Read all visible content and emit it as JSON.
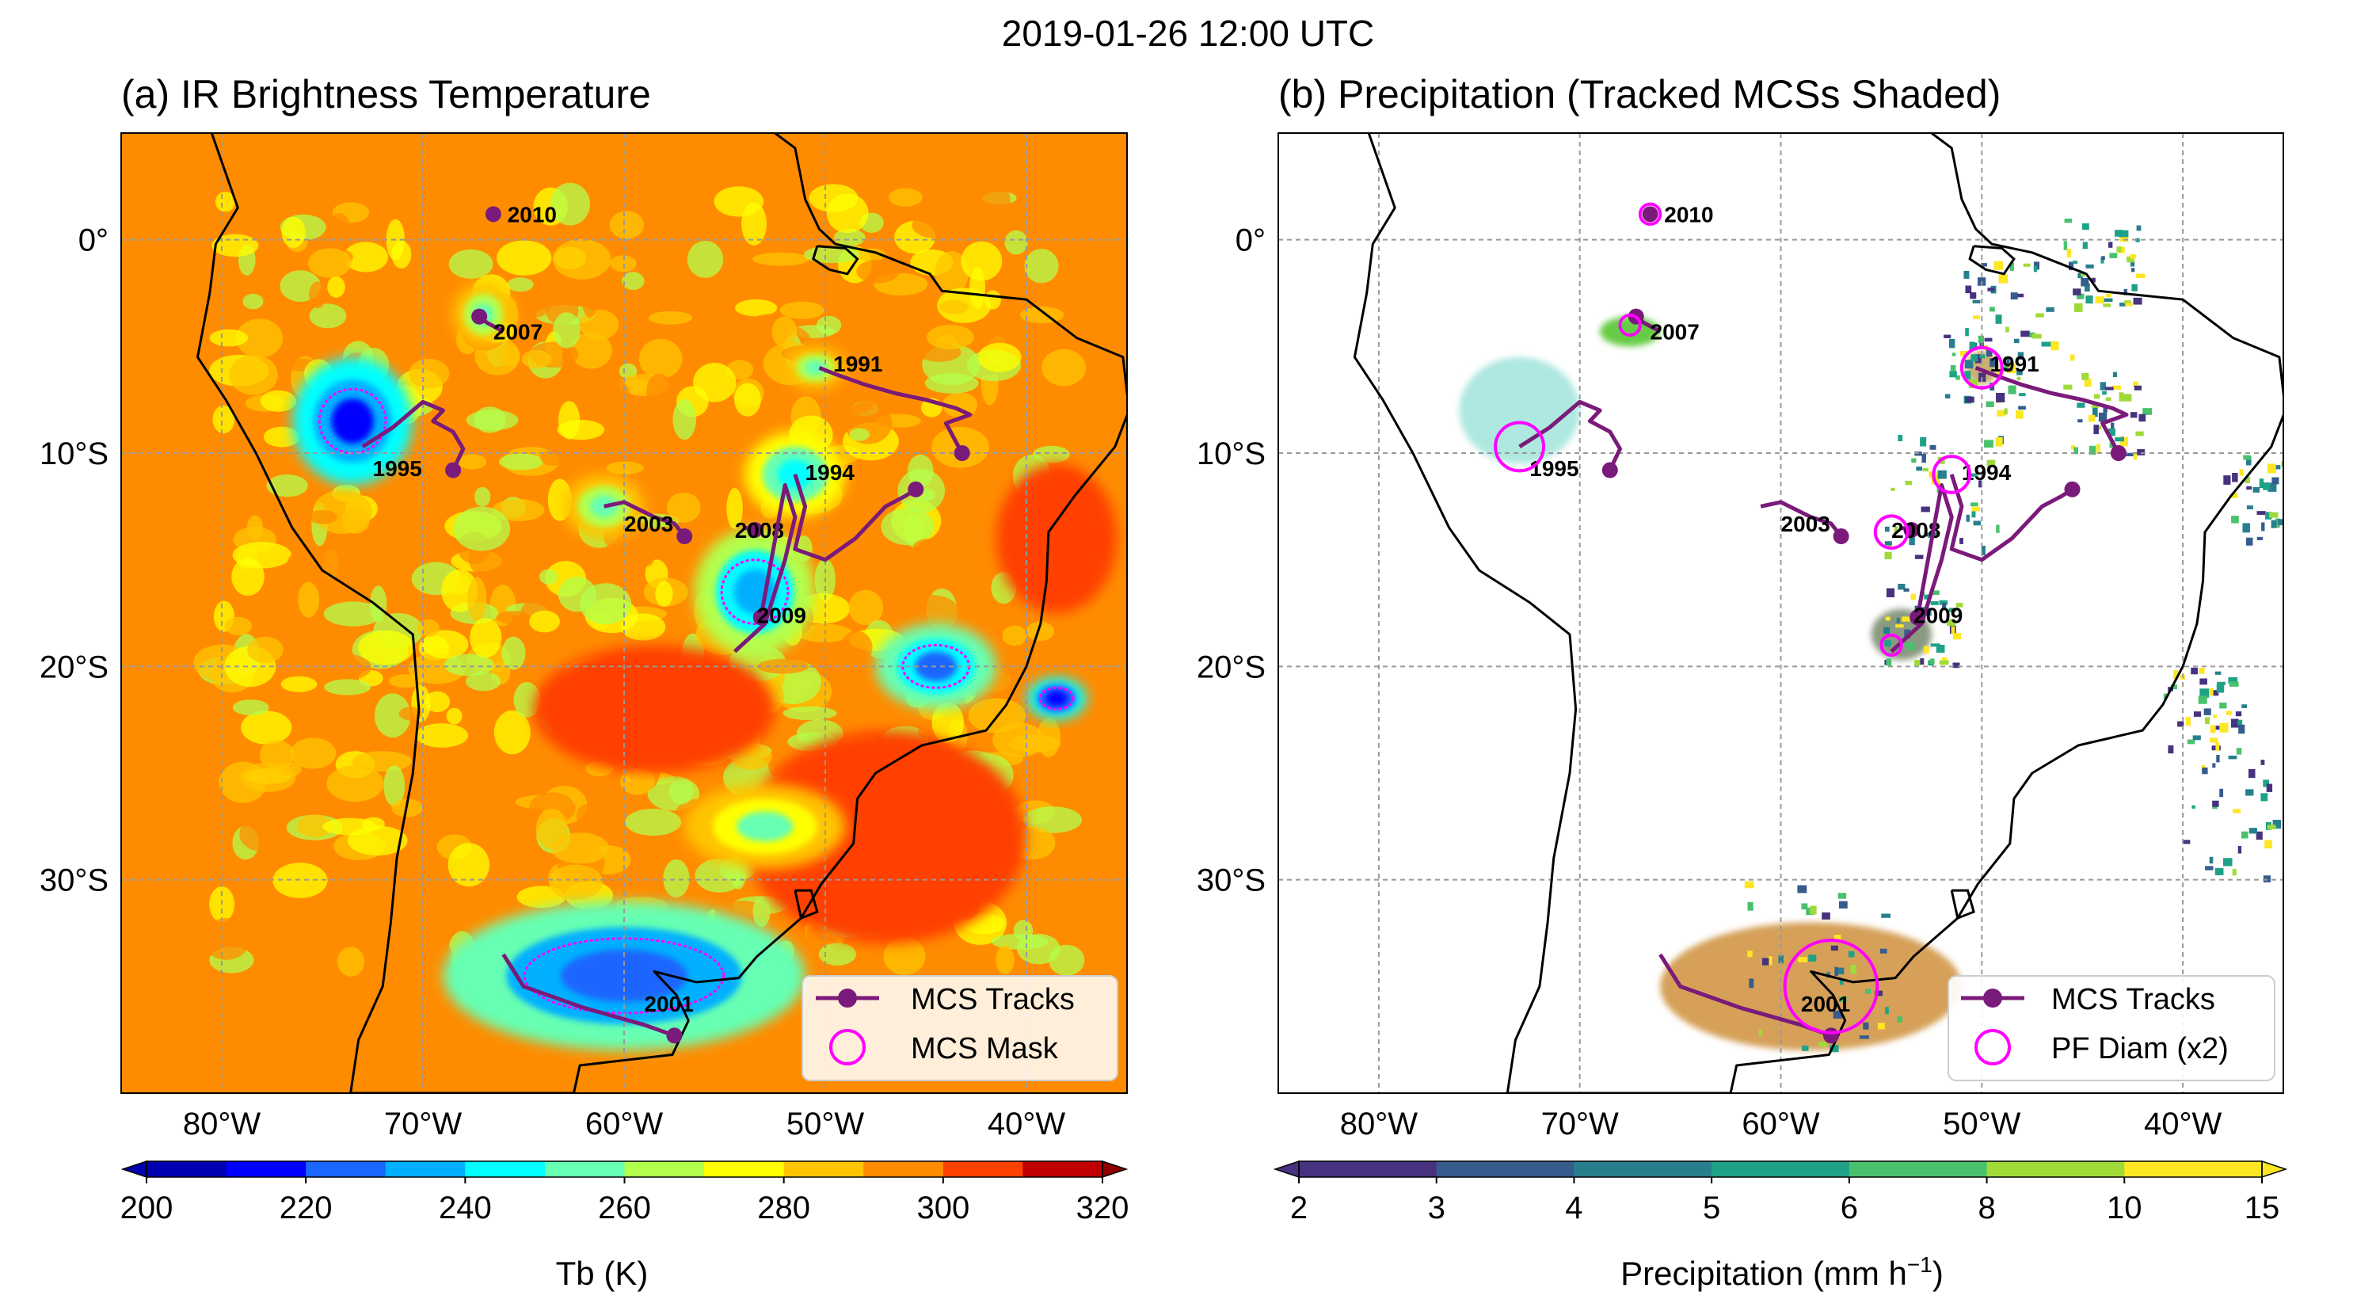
{
  "figure": {
    "title": "2019-01-26 12:00 UTC"
  },
  "chart_data": [
    {
      "type": "map",
      "id": "panel_a",
      "title": "(a) IR Brightness Temperature",
      "lon_range": [
        -85,
        -35
      ],
      "lat_range": [
        -40,
        5
      ],
      "xticks": [
        -80,
        -70,
        -60,
        -50,
        -40
      ],
      "xtick_labels": [
        "80°W",
        "70°W",
        "60°W",
        "50°W",
        "40°W"
      ],
      "yticks": [
        0,
        -10,
        -20,
        -30
      ],
      "ytick_labels": [
        "0°",
        "10°S",
        "20°S",
        "30°S"
      ],
      "grid": true,
      "background_field": "Tb (K)",
      "cold_cloud_regions": [
        {
          "lon": -73.5,
          "lat": -8.5,
          "rx": 3.0,
          "ry": 3.0,
          "tb": 215
        },
        {
          "lon": -67.0,
          "lat": -3.5,
          "rx": 1.5,
          "ry": 1.5,
          "tb": 250
        },
        {
          "lon": -61.0,
          "lat": -12.5,
          "rx": 2.0,
          "ry": 1.5,
          "tb": 250
        },
        {
          "lon": -53.5,
          "lat": -16.5,
          "rx": 3.0,
          "ry": 3.0,
          "tb": 230
        },
        {
          "lon": -50.5,
          "lat": -6.0,
          "rx": 1.5,
          "ry": 1.0,
          "tb": 250
        },
        {
          "lon": -51.5,
          "lat": -11.0,
          "rx": 2.5,
          "ry": 2.0,
          "tb": 240
        },
        {
          "lon": -44.5,
          "lat": -20.0,
          "rx": 3.0,
          "ry": 2.0,
          "tb": 225
        },
        {
          "lon": -38.5,
          "lat": -21.5,
          "rx": 1.5,
          "ry": 1.0,
          "tb": 210
        },
        {
          "lon": -60.0,
          "lat": -34.5,
          "rx": 9.0,
          "ry": 3.5,
          "tb": 220
        },
        {
          "lon": -53.0,
          "lat": -27.5,
          "rx": 4.0,
          "ry": 2.0,
          "tb": 255
        }
      ],
      "warm_regions": [
        {
          "lon": -58.5,
          "lat": -22.0,
          "rx": 6.0,
          "ry": 3.0,
          "tb": 305
        },
        {
          "lon": -47.0,
          "lat": -28.0,
          "rx": 7.0,
          "ry": 5.0,
          "tb": 305
        },
        {
          "lon": -38.5,
          "lat": -14.0,
          "rx": 3.0,
          "ry": 3.5,
          "tb": 305
        }
      ],
      "tracks": [
        {
          "id": "2010",
          "lons": [
            -66.5
          ],
          "lats": [
            1.2
          ],
          "label_lon": -65.8,
          "label_lat": 1.2
        },
        {
          "id": "2007",
          "lons": [
            -66.0,
            -66.8,
            -67.2
          ],
          "lats": [
            -4.3,
            -3.9,
            -3.6
          ],
          "label_lon": -66.5,
          "label_lat": -4.3
        },
        {
          "id": "1995",
          "lons": [
            -73.0,
            -71.5,
            -70.0,
            -69.0,
            -69.5,
            -68.5,
            -68.0,
            -68.5
          ],
          "lats": [
            -9.7,
            -8.8,
            -7.6,
            -8.0,
            -8.5,
            -9.0,
            -9.8,
            -10.8
          ],
          "label_lon": -72.5,
          "label_lat": -10.7
        },
        {
          "id": "1991",
          "lons": [
            -50.3,
            -49.5,
            -48.0,
            -46.5,
            -45.0,
            -43.5,
            -42.8,
            -44.0,
            -43.2
          ],
          "lats": [
            -6.0,
            -6.3,
            -6.8,
            -7.2,
            -7.5,
            -7.9,
            -8.2,
            -8.6,
            -10.0
          ],
          "label_lon": -49.6,
          "label_lat": -5.8
        },
        {
          "id": "2003",
          "lons": [
            -61.0,
            -60.0,
            -58.5,
            -57.5,
            -57.0
          ],
          "lats": [
            -12.5,
            -12.3,
            -13.0,
            -13.3,
            -13.9
          ],
          "label_lon": -60.0,
          "label_lat": -13.3
        },
        {
          "id": "1994",
          "lons": [
            -51.5,
            -51.0,
            -51.5,
            -50.0,
            -48.5,
            -47.0,
            -46.0,
            -45.5
          ],
          "lats": [
            -11.0,
            -12.5,
            -14.5,
            -15.0,
            -14.0,
            -12.5,
            -12.0,
            -11.7
          ],
          "label_lon": -51.0,
          "label_lat": -10.9
        },
        {
          "id": "2008",
          "lons": [
            -54.0,
            -53.5
          ],
          "lats": [
            -13.5,
            -13.6
          ],
          "label_lon": -54.5,
          "label_lat": -13.6
        },
        {
          "id": "2009",
          "lons": [
            -54.5,
            -53.0,
            -52.5,
            -52.0,
            -51.5,
            -52.0,
            -53.2
          ],
          "lats": [
            -19.3,
            -18.0,
            -16.5,
            -15.0,
            -13.0,
            -11.5,
            -17.7
          ],
          "label_lon": -53.4,
          "label_lat": -17.6
        },
        {
          "id": "2001",
          "lons": [
            -66.0,
            -65.0,
            -62.0,
            -59.0,
            -57.5
          ],
          "lats": [
            -33.5,
            -35.0,
            -36.0,
            -36.8,
            -37.3
          ],
          "label_lon": -59.0,
          "label_lat": -35.8
        }
      ],
      "legend": {
        "position": "bottom-right",
        "entries": [
          "MCS Tracks",
          "MCS Mask"
        ]
      },
      "colorbar": {
        "label": "Tb (K)",
        "ticks": [
          "200",
          "220",
          "240",
          "260",
          "280",
          "300",
          "320"
        ],
        "colors": [
          "#0000b0",
          "#0000ff",
          "#1a66ff",
          "#00b0ff",
          "#00ffff",
          "#66ffb3",
          "#b3ff4d",
          "#ffff00",
          "#ffc400",
          "#ff8c00",
          "#ff4000",
          "#c00000"
        ]
      }
    },
    {
      "type": "map",
      "id": "panel_b",
      "title": "(b) Precipitation (Tracked MCSs Shaded)",
      "lon_range": [
        -85,
        -35
      ],
      "lat_range": [
        -40,
        5
      ],
      "xticks": [
        -80,
        -70,
        -60,
        -50,
        -40
      ],
      "xtick_labels": [
        "80°W",
        "70°W",
        "60°W",
        "50°W",
        "40°W"
      ],
      "yticks": [
        0,
        -10,
        -20,
        -30
      ],
      "ytick_labels": [
        "0°",
        "10°S",
        "20°S",
        "30°S"
      ],
      "grid": true,
      "tracked_mcs_shading": [
        {
          "lon": -73.0,
          "lat": -8.0,
          "rx": 3.0,
          "ry": 2.5,
          "color": "#aee8e0"
        },
        {
          "lon": -67.5,
          "lat": -4.3,
          "rx": 1.5,
          "ry": 0.7,
          "color": "#66cc44"
        },
        {
          "lon": -54.0,
          "lat": -18.5,
          "rx": 1.5,
          "ry": 1.2,
          "color": "#8a9a80"
        },
        {
          "lon": -58.5,
          "lat": -35.0,
          "rx": 7.5,
          "ry": 3.0,
          "color": "#d6a058"
        },
        {
          "lon": -50.0,
          "lat": -6.0,
          "rx": 0.8,
          "ry": 0.8,
          "color": "#c8b070"
        }
      ],
      "tracks_same_as_panel_a": true,
      "pf_circles": [
        {
          "id": "1995",
          "lon": -73.0,
          "lat": -9.7,
          "r_deg": 1.2
        },
        {
          "id": "2010",
          "lon": -66.5,
          "lat": 1.2,
          "r_deg": 0.5
        },
        {
          "id": "2007",
          "lon": -67.5,
          "lat": -4.0,
          "r_deg": 0.5
        },
        {
          "id": "1991",
          "lon": -50.0,
          "lat": -6.0,
          "r_deg": 1.0
        },
        {
          "id": "1994",
          "lon": -51.5,
          "lat": -11.0,
          "r_deg": 0.9
        },
        {
          "id": "2008",
          "lon": -54.5,
          "lat": -13.7,
          "r_deg": 0.8
        },
        {
          "id": "2009",
          "lon": -54.5,
          "lat": -19.0,
          "r_deg": 0.5
        },
        {
          "id": "2001",
          "lon": -57.5,
          "lat": -35.0,
          "r_deg": 2.3
        }
      ],
      "legend": {
        "position": "bottom-right",
        "entries": [
          "MCS Tracks",
          "PF Diam (x2)"
        ]
      },
      "colorbar": {
        "label": "Precipitation (mm h",
        "label_sup": "−1",
        "label_end": ")",
        "ticks": [
          "2",
          "3",
          "4",
          "5",
          "6",
          "8",
          "10",
          "15"
        ],
        "colors": [
          "#46327e",
          "#365c8d",
          "#277f8e",
          "#1fa187",
          "#4ac16d",
          "#a0da39",
          "#fde725"
        ]
      }
    }
  ],
  "colors": {
    "track": "#7a1a7a",
    "mask": "#ff00ff",
    "background_orange": "#ff8c00",
    "coast": "#000000"
  }
}
